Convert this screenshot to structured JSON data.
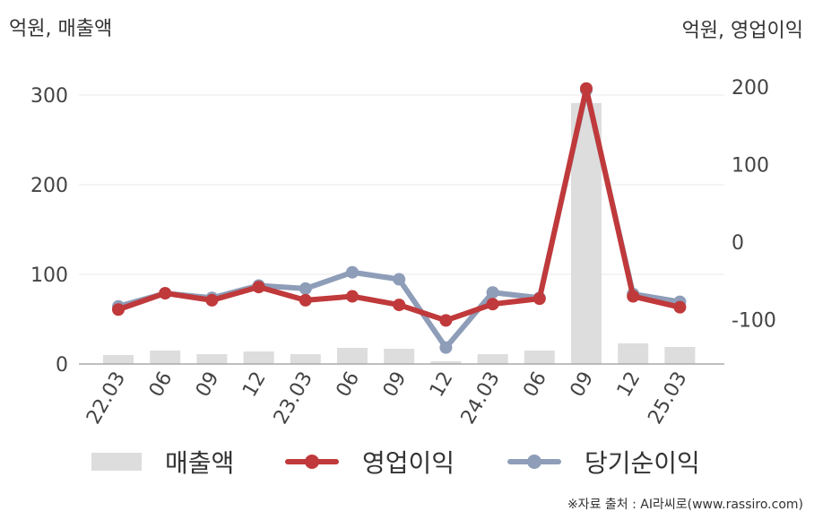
{
  "units": {
    "left": "억원, 매출액",
    "right": "억원, 영업이익"
  },
  "legend": {
    "sales": "매출액",
    "op": "영업이익",
    "net": "당기순이익"
  },
  "source": "※자료 출처 : AI라씨로(www.rassiro.com)",
  "colors": {
    "sales": "#dddddd",
    "op": "#c0393b",
    "net": "#8e9db8",
    "grid": "#e8e8e8",
    "axis": "#aaaaaa",
    "text": "#444444"
  },
  "chart_data": {
    "type": "bar+line",
    "categories": [
      "22.03",
      "06",
      "09",
      "12",
      "23.03",
      "06",
      "09",
      "12",
      "24.03",
      "06",
      "09",
      "12",
      "25.03"
    ],
    "left_axis": {
      "ticks": [
        0,
        100,
        200,
        300
      ],
      "ylim": [
        0,
        360
      ]
    },
    "right_axis": {
      "ticks": [
        -100,
        0,
        100,
        200
      ],
      "ylim": [
        -160,
        245
      ]
    },
    "series": [
      {
        "name": "매출액",
        "type": "bar",
        "axis": "left",
        "values": [
          10,
          15,
          11,
          14,
          11,
          18,
          17,
          3,
          11,
          15,
          291,
          23,
          19
        ]
      },
      {
        "name": "영업이익",
        "type": "line",
        "axis": "right",
        "values": [
          -87,
          -66,
          -75,
          -58,
          -75,
          -70,
          -81,
          -101,
          -80,
          -73,
          198,
          -70,
          -84
        ]
      },
      {
        "name": "당기순이익",
        "type": "line",
        "axis": "right",
        "values": [
          -83,
          -66,
          -72,
          -56,
          -60,
          -39,
          -48,
          -136,
          -65,
          -72,
          196,
          -67,
          -77
        ]
      }
    ]
  }
}
